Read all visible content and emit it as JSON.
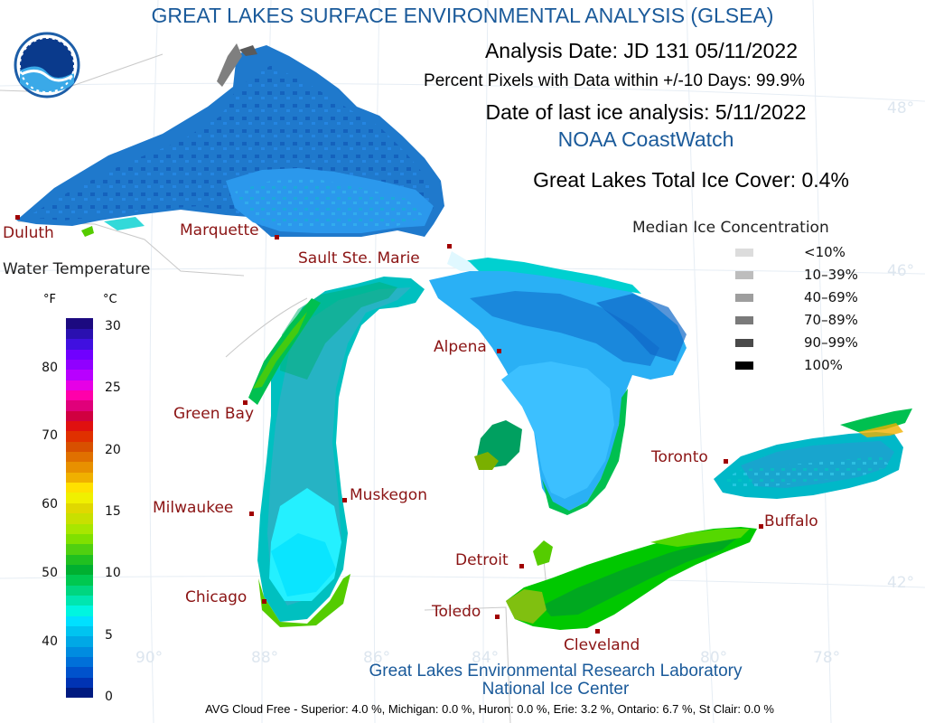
{
  "header": {
    "title": "GREAT LAKES SURFACE ENVIRONMENTAL ANALYSIS (GLSEA)",
    "analysis_date": "Analysis Date:  JD 131 05/11/2022",
    "percent_pixels": "Percent Pixels with Data within +/-10 Days:  99.9%",
    "ice_date": "Date of last ice analysis: 5/11/2022",
    "coastwatch": "NOAA CoastWatch",
    "ice_cover": "Great Lakes Total Ice Cover:   0.4%"
  },
  "logo": {
    "text": "NOAA",
    "icon": "noaa-logo-icon"
  },
  "grid_labels": {
    "lat48": "48°",
    "lat46": "46°",
    "lat42": "42°",
    "lon90": "90°",
    "lon88": "88°",
    "lon86": "86°",
    "lon84": "84°",
    "lon80": "80°",
    "lon78": "78°"
  },
  "cities": {
    "duluth": "Duluth",
    "marquette": "Marquette",
    "sault": "Sault Ste. Marie",
    "alpena": "Alpena",
    "green_bay": "Green Bay",
    "toronto": "Toronto",
    "muskegon": "Muskegon",
    "milwaukee": "Milwaukee",
    "buffalo": "Buffalo",
    "detroit": "Detroit",
    "chicago": "Chicago",
    "toledo": "Toledo",
    "cleveland": "Cleveland"
  },
  "ice_legend": {
    "title": "Median Ice Concentration",
    "items": [
      {
        "label": "<10%",
        "color": "#dcdcdc"
      },
      {
        "label": "10–39%",
        "color": "#bdbdbd"
      },
      {
        "label": "40–69%",
        "color": "#9e9e9e"
      },
      {
        "label": "70–89%",
        "color": "#7a7a7a"
      },
      {
        "label": "90–99%",
        "color": "#4a4a4a"
      },
      {
        "label": "100%",
        "color": "#000000"
      }
    ]
  },
  "water_temp_legend": {
    "title": "Water Temperature",
    "unit_f": "°F",
    "unit_c": "°C",
    "f_labels": [
      "80",
      "70",
      "60",
      "50",
      "40"
    ],
    "c_labels": [
      "30",
      "25",
      "20",
      "15",
      "10",
      "5",
      "0"
    ],
    "colors": [
      "#001a80",
      "#0033b3",
      "#0052cc",
      "#0070d9",
      "#008ce0",
      "#00a8e6",
      "#00c4f0",
      "#00e0ff",
      "#00f5e0",
      "#00e6b0",
      "#00d680",
      "#00c850",
      "#00b030",
      "#20c020",
      "#50d010",
      "#80e000",
      "#a8e600",
      "#c8e000",
      "#e0d800",
      "#f0f000",
      "#ffe000",
      "#f0b000",
      "#e89000",
      "#e07000",
      "#d85000",
      "#e03000",
      "#e01010",
      "#d00040",
      "#e0007a",
      "#ff00aa",
      "#e600e6",
      "#b800ff",
      "#9000ff",
      "#7000ff",
      "#4010e0",
      "#2a10b0",
      "#1c0a80"
    ]
  },
  "footer": {
    "line1": "Great Lakes Environmental Research Laboratory",
    "line2": "National Ice Center",
    "cloud_free": "AVG Cloud Free - Superior:   4.0 %, Michigan:   0.0 %, Huron:   0.0 %, Erie:  3.2 %, Ontario:  6.7 %, St Clair:  0.0 %"
  }
}
